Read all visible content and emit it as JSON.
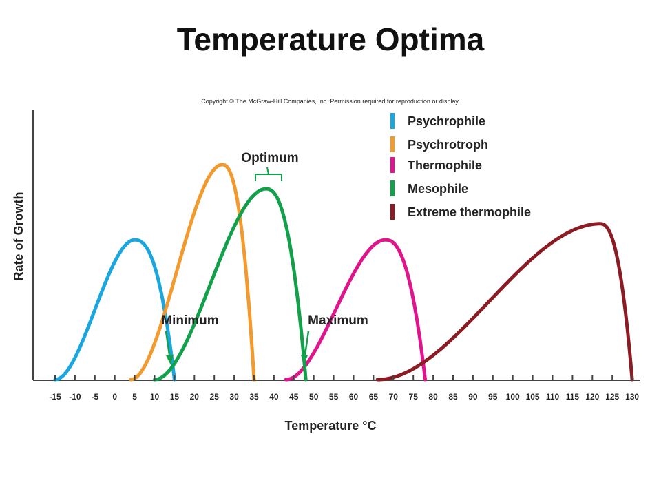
{
  "title": "Temperature Optima",
  "copyright": "Copyright © The McGraw-Hill Companies, Inc. Permission required for reproduction or display.",
  "chart_data": {
    "type": "line",
    "xlabel": "Temperature °C",
    "ylabel": "Rate of Growth",
    "xlim": [
      -15,
      130
    ],
    "ylim": [
      0,
      10
    ],
    "x_ticks": [
      -15,
      -10,
      -5,
      0,
      5,
      10,
      15,
      20,
      25,
      30,
      35,
      40,
      45,
      50,
      55,
      60,
      65,
      70,
      75,
      80,
      85,
      90,
      95,
      100,
      105,
      110,
      115,
      120,
      125,
      130
    ],
    "grid": false,
    "legend_position": "top-right",
    "series": [
      {
        "name": "Psychrophile",
        "color": "#1aa7e0",
        "min": -15,
        "opt": 5,
        "max": 15,
        "peak": 5.2
      },
      {
        "name": "Psychrotroph",
        "color": "#f29a2e",
        "min": 4,
        "opt": 27,
        "max": 35,
        "peak": 8.0
      },
      {
        "name": "Thermophile",
        "color": "#e0158c",
        "min": 43,
        "opt": 68,
        "max": 78,
        "peak": 5.2
      },
      {
        "name": "Mesophile",
        "color": "#12a14a",
        "min": 10,
        "opt": 38,
        "max": 48,
        "peak": 7.1
      },
      {
        "name": "Extreme thermophile",
        "color": "#8c1c24",
        "min": 66,
        "opt": 122,
        "max": 130,
        "peak": 5.8
      }
    ],
    "annotations": {
      "optimum": "Optimum",
      "minimum": "Minimum",
      "maximum": "Maximum"
    }
  }
}
